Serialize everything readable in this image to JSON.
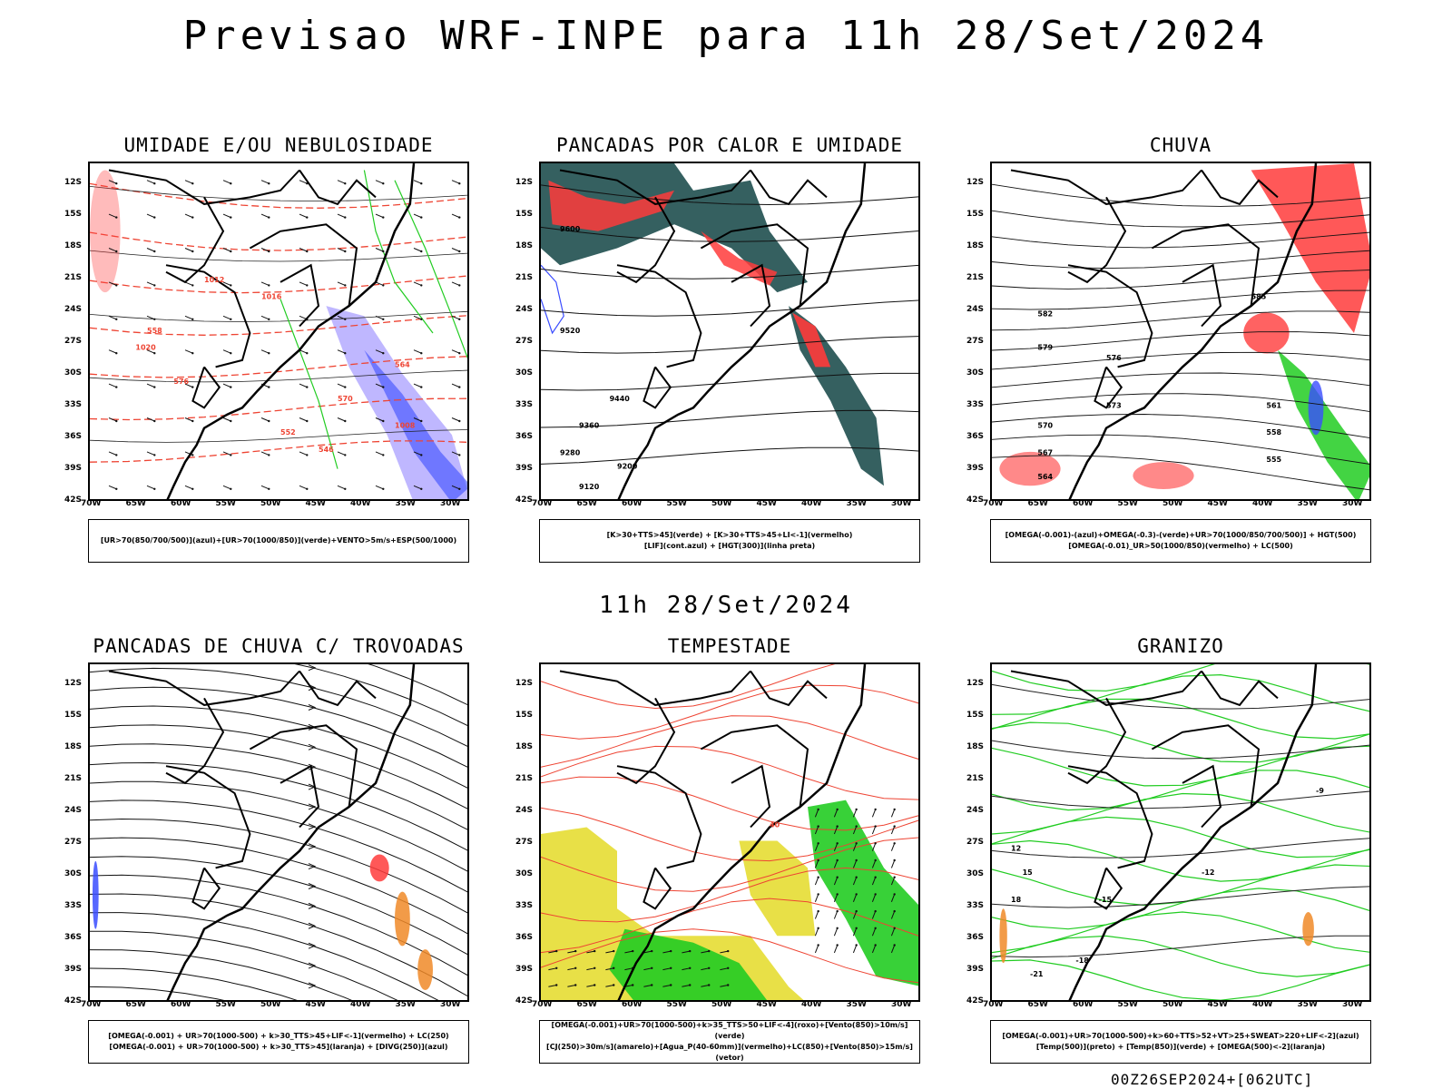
{
  "title": "Previsao WRF-INPE  para 11h 28/Set/2024",
  "subtitle": "11h 28/Set/2024",
  "footer": "00Z26SEP2024+[062UTC]",
  "axes": {
    "lat": [
      "12S",
      "15S",
      "18S",
      "21S",
      "24S",
      "27S",
      "30S",
      "33S",
      "36S",
      "39S",
      "42S"
    ],
    "lon": [
      "70W",
      "65W",
      "60W",
      "55W",
      "50W",
      "45W",
      "40W",
      "35W",
      "30W"
    ]
  },
  "colors": {
    "red": "#ff3b3b",
    "green": "#22cc22",
    "blue": "#3a4cff",
    "purple": "#8a7bff",
    "teal": "#1f4f4f",
    "yellow": "#e6dd33",
    "orange": "#f08a28"
  },
  "panels": [
    {
      "title": "UMIDADE E/OU NEBULOSIDADE",
      "legend": [
        "[UR>70(850/700/500)](azul)+[UR>70(1000/850)](verde)+VENTO>5m/s+ESP(500/1000)"
      ],
      "labels": [
        "1012",
        "1016",
        "1020",
        "576",
        "570",
        "564",
        "558",
        "552",
        "546",
        "1008"
      ]
    },
    {
      "title": "PANCADAS POR CALOR E UMIDADE",
      "legend": [
        "[K>30+TTS>45](verde) + [K>30+TTS>45+LI<-1](vermelho)",
        "[LIF](cont.azul) + [HGT(300)](linha preta)"
      ],
      "labels": [
        "9600",
        "9520",
        "9440",
        "9360",
        "9280",
        "9200",
        "9120"
      ]
    },
    {
      "title": "CHUVA",
      "legend": [
        "[OMEGA(-0.001)-(azul)+OMEGA(-0.3)-(verde)+UR>70(1000/850/700/500)] + HGT(500)",
        "[OMEGA(-0.01)_UR>50(1000/850)(vermelho) + LC(500)"
      ],
      "labels": [
        "585",
        "582",
        "579",
        "576",
        "573",
        "570",
        "567",
        "564",
        "561",
        "558",
        "555"
      ]
    },
    {
      "title": "PANCADAS DE CHUVA C/ TROVOADAS",
      "legend": [
        "[OMEGA(-0.001) + UR>70(1000-500) + k>30_TTS>45+LIF<-1](vermelho) + LC(250)",
        "[OMEGA(-0.001) + UR>70(1000-500) + k>30_TTS>45](laranja) + [DIVG(250)](azul)"
      ],
      "labels": []
    },
    {
      "title": "TEMPESTADE",
      "legend": [
        "[OMEGA(-0.001)+UR>70(1000-500)+k>35_TTS>50+LIF<-4](roxo)+[Vento(850)>10m/s](verde)",
        "[CJ(250)>30m/s](amarelo)+[Agua_P(40-60mm)](vermelho)+LC(850)+[Vento(850)>15m/s](vetor)"
      ],
      "labels": [
        "40"
      ]
    },
    {
      "title": "GRANIZO",
      "legend": [
        "[OMEGA(-0.001)+UR>70(1000-500)+k>60+TTS>52+VT>25+SWEAT>220+LIF<-2](azul)",
        "[Temp(500)](preto) + [Temp(850)](verde) + [OMEGA(500)<-2](laranja)"
      ],
      "labels": [
        "-12",
        "-15",
        "-18",
        "-21",
        "12",
        "15",
        "18",
        "-9"
      ]
    }
  ]
}
